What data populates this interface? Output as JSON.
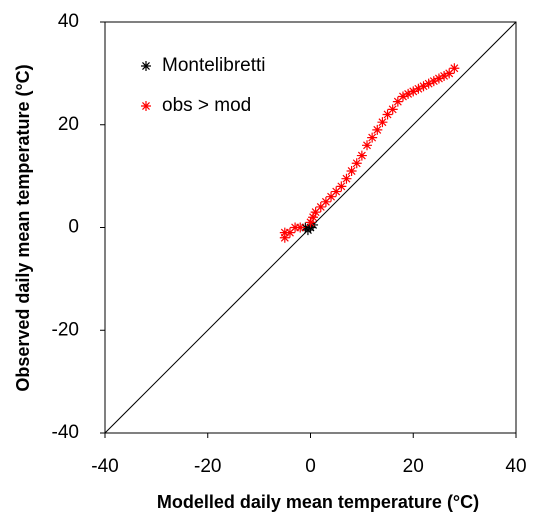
{
  "chart_data": {
    "type": "scatter",
    "xlabel": "Modelled daily mean temperature (°C)",
    "ylabel": "Observed daily mean temperature (°C)",
    "xlim": [
      -40,
      40
    ],
    "ylim": [
      -40,
      40
    ],
    "xticks": [
      -40,
      -20,
      0,
      20,
      40
    ],
    "yticks": [
      -40,
      -20,
      0,
      20,
      40
    ],
    "legend": "upper left",
    "series": [
      {
        "name": "Montelibretti",
        "color": "#000000",
        "x": [
          -1,
          -0.5,
          0,
          0.5
        ],
        "values": [
          0,
          -0.5,
          0,
          0.5
        ]
      },
      {
        "name": "obs > mod",
        "color": "#ff0000",
        "x": [
          -5,
          -5,
          -4,
          -3,
          -2,
          0,
          0.5,
          1,
          2,
          3,
          4,
          5,
          6,
          7,
          8,
          9,
          10,
          11,
          12,
          13,
          14,
          15,
          16,
          17,
          18,
          19,
          20,
          21,
          22,
          23,
          24,
          25,
          26,
          27,
          28
        ],
        "values": [
          -2,
          -1,
          -1,
          0,
          0,
          1,
          2,
          3,
          4,
          5,
          6,
          7,
          8,
          9.5,
          11,
          12.5,
          14,
          16,
          17.5,
          19,
          20.5,
          22,
          23,
          24.5,
          25.5,
          26,
          26.5,
          27,
          27.5,
          28,
          28.5,
          29,
          29.5,
          30,
          31
        ]
      }
    ]
  }
}
